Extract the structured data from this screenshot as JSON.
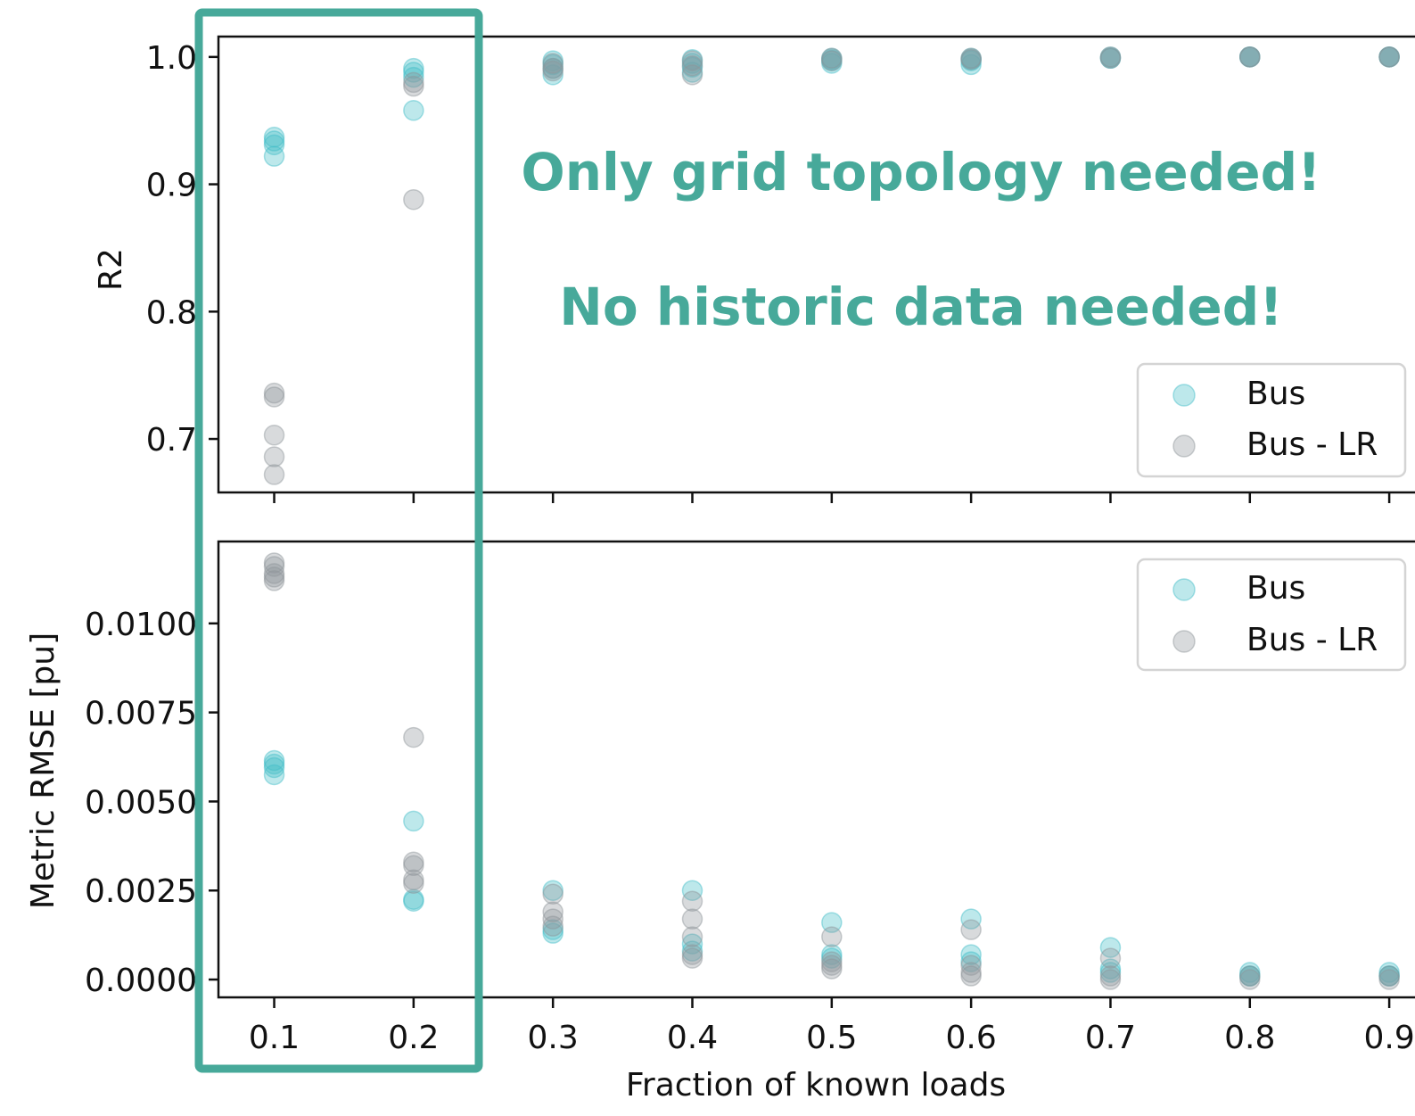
{
  "colors": {
    "bus": "#41bcc7",
    "bus_lr": "#8f959a",
    "highlight": "#47a99a",
    "callout": "#47a99a",
    "axes": "#111111"
  },
  "annotations": [
    "Only grid topology needed!",
    "No historic data needed!"
  ],
  "highlight_box": {
    "x_range": [
      0.1,
      0.2
    ],
    "description_color": "#47a99a"
  },
  "chart_data": [
    {
      "type": "scatter",
      "title": "",
      "xlabel": "",
      "ylabel": "R2",
      "xlim": [
        0.06,
        0.93
      ],
      "ylim": [
        0.658,
        1.016
      ],
      "x_ticks": [
        0.1,
        0.2,
        0.3,
        0.4,
        0.5,
        0.6,
        0.7,
        0.8,
        0.9
      ],
      "x_ticklabels_visible": false,
      "y_ticks": [
        {
          "value": 0.7,
          "label": "0.7"
        },
        {
          "value": 0.8,
          "label": "0.8"
        },
        {
          "value": 0.9,
          "label": "0.9"
        },
        {
          "value": 1.0,
          "label": "1.0"
        }
      ],
      "legend": {
        "position": "right",
        "entries": [
          "Bus",
          "Bus - LR"
        ]
      },
      "grid": false,
      "series": [
        {
          "name": "Bus",
          "color": "#41bcc7",
          "points": [
            [
              0.1,
              0.937
            ],
            [
              0.1,
              0.934
            ],
            [
              0.1,
              0.931
            ],
            [
              0.1,
              0.922
            ],
            [
              0.2,
              0.991
            ],
            [
              0.2,
              0.988
            ],
            [
              0.2,
              0.984
            ],
            [
              0.2,
              0.958
            ],
            [
              0.3,
              0.997
            ],
            [
              0.3,
              0.994
            ],
            [
              0.3,
              0.991
            ],
            [
              0.3,
              0.986
            ],
            [
              0.4,
              0.998
            ],
            [
              0.4,
              0.995
            ],
            [
              0.4,
              0.992
            ],
            [
              0.4,
              0.988
            ],
            [
              0.5,
              0.999
            ],
            [
              0.5,
              0.998
            ],
            [
              0.5,
              0.997
            ],
            [
              0.5,
              0.995
            ],
            [
              0.6,
              0.999
            ],
            [
              0.6,
              0.998
            ],
            [
              0.6,
              0.997
            ],
            [
              0.6,
              0.994
            ],
            [
              0.7,
              1.0
            ],
            [
              0.7,
              0.999
            ],
            [
              0.7,
              0.999
            ],
            [
              0.8,
              1.0
            ],
            [
              0.8,
              1.0
            ],
            [
              0.8,
              1.0
            ],
            [
              0.9,
              1.0
            ],
            [
              0.9,
              1.0
            ],
            [
              0.9,
              1.0
            ]
          ]
        },
        {
          "name": "Bus - LR",
          "color": "#8f959a",
          "points": [
            [
              0.1,
              0.736
            ],
            [
              0.1,
              0.733
            ],
            [
              0.1,
              0.703
            ],
            [
              0.1,
              0.686
            ],
            [
              0.1,
              0.672
            ],
            [
              0.2,
              0.98
            ],
            [
              0.2,
              0.977
            ],
            [
              0.2,
              0.888
            ],
            [
              0.3,
              0.995
            ],
            [
              0.3,
              0.991
            ],
            [
              0.3,
              0.989
            ],
            [
              0.4,
              0.997
            ],
            [
              0.4,
              0.993
            ],
            [
              0.4,
              0.986
            ],
            [
              0.5,
              0.999
            ],
            [
              0.5,
              0.997
            ],
            [
              0.6,
              0.999
            ],
            [
              0.6,
              0.998
            ],
            [
              0.7,
              1.0
            ],
            [
              0.7,
              0.999
            ],
            [
              0.8,
              1.0
            ],
            [
              0.8,
              1.0
            ],
            [
              0.9,
              1.0
            ],
            [
              0.9,
              1.0
            ]
          ]
        }
      ]
    },
    {
      "type": "scatter",
      "title": "",
      "xlabel": "Fraction of known loads",
      "ylabel": "Metric RMSE [pu]",
      "xlim": [
        0.06,
        0.93
      ],
      "ylim": [
        -0.0005,
        0.0123
      ],
      "x_ticks": [
        {
          "value": 0.1,
          "label": "0.1"
        },
        {
          "value": 0.2,
          "label": "0.2"
        },
        {
          "value": 0.3,
          "label": "0.3"
        },
        {
          "value": 0.4,
          "label": "0.4"
        },
        {
          "value": 0.5,
          "label": "0.5"
        },
        {
          "value": 0.6,
          "label": "0.6"
        },
        {
          "value": 0.7,
          "label": "0.7"
        },
        {
          "value": 0.8,
          "label": "0.8"
        },
        {
          "value": 0.9,
          "label": "0.9"
        }
      ],
      "y_ticks": [
        {
          "value": 0.0,
          "label": "0.0000"
        },
        {
          "value": 0.0025,
          "label": "0.0025"
        },
        {
          "value": 0.005,
          "label": "0.0050"
        },
        {
          "value": 0.0075,
          "label": "0.0075"
        },
        {
          "value": 0.01,
          "label": "0.0100"
        }
      ],
      "legend": {
        "position": "top-right",
        "entries": [
          "Bus",
          "Bus - LR"
        ]
      },
      "grid": false,
      "series": [
        {
          "name": "Bus",
          "color": "#41bcc7",
          "points": [
            [
              0.1,
              0.00615
            ],
            [
              0.1,
              0.00605
            ],
            [
              0.1,
              0.00595
            ],
            [
              0.1,
              0.00575
            ],
            [
              0.2,
              0.00445
            ],
            [
              0.2,
              0.00225
            ],
            [
              0.2,
              0.0022
            ],
            [
              0.3,
              0.0025
            ],
            [
              0.3,
              0.0014
            ],
            [
              0.3,
              0.0013
            ],
            [
              0.4,
              0.0025
            ],
            [
              0.4,
              0.001
            ],
            [
              0.4,
              0.0008
            ],
            [
              0.5,
              0.0016
            ],
            [
              0.5,
              0.0007
            ],
            [
              0.5,
              0.0006
            ],
            [
              0.6,
              0.0017
            ],
            [
              0.6,
              0.0007
            ],
            [
              0.6,
              0.0005
            ],
            [
              0.7,
              0.0009
            ],
            [
              0.7,
              0.0003
            ],
            [
              0.7,
              0.0002
            ],
            [
              0.8,
              0.0002
            ],
            [
              0.8,
              0.0001
            ],
            [
              0.8,
              0.0001
            ],
            [
              0.9,
              0.0002
            ],
            [
              0.9,
              0.0001
            ],
            [
              0.9,
              0.0001
            ]
          ]
        },
        {
          "name": "Bus - LR",
          "color": "#8f959a",
          "points": [
            [
              0.1,
              0.0117
            ],
            [
              0.1,
              0.0116
            ],
            [
              0.1,
              0.0114
            ],
            [
              0.1,
              0.0113
            ],
            [
              0.1,
              0.0112
            ],
            [
              0.2,
              0.0068
            ],
            [
              0.2,
              0.0033
            ],
            [
              0.2,
              0.0032
            ],
            [
              0.2,
              0.0028
            ],
            [
              0.2,
              0.0027
            ],
            [
              0.3,
              0.0024
            ],
            [
              0.3,
              0.0019
            ],
            [
              0.3,
              0.0017
            ],
            [
              0.3,
              0.0015
            ],
            [
              0.4,
              0.0022
            ],
            [
              0.4,
              0.0017
            ],
            [
              0.4,
              0.0012
            ],
            [
              0.4,
              0.0007
            ],
            [
              0.4,
              0.0006
            ],
            [
              0.5,
              0.0012
            ],
            [
              0.5,
              0.0005
            ],
            [
              0.5,
              0.0004
            ],
            [
              0.5,
              0.0003
            ],
            [
              0.6,
              0.0014
            ],
            [
              0.6,
              0.0004
            ],
            [
              0.6,
              0.0002
            ],
            [
              0.6,
              0.0001
            ],
            [
              0.7,
              0.0006
            ],
            [
              0.7,
              0.0001
            ],
            [
              0.7,
              0.0
            ],
            [
              0.8,
              0.0001
            ],
            [
              0.8,
              0.0
            ],
            [
              0.9,
              0.0001
            ],
            [
              0.9,
              0.0
            ]
          ]
        }
      ]
    }
  ]
}
